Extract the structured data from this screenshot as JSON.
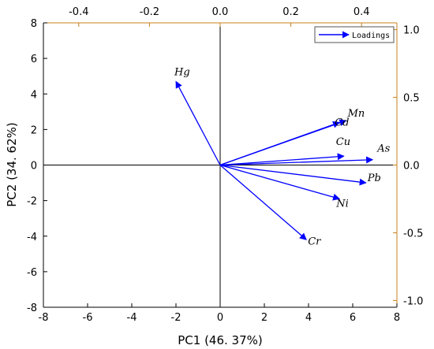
{
  "chart_data": {
    "type": "biplot",
    "xlabel": "PC1 (46. 37%)",
    "ylabel": "PC2 (34. 62%)",
    "xlim": [
      -8,
      8
    ],
    "ylim": [
      -8,
      8
    ],
    "x_ticks": [
      -8,
      -6,
      -4,
      -2,
      0,
      2,
      4,
      6,
      8
    ],
    "y_ticks": [
      -8,
      -6,
      -4,
      -2,
      0,
      2,
      4,
      6,
      8
    ],
    "top_axis": {
      "lim": [
        -0.5,
        0.5
      ],
      "ticks": [
        "-0.4",
        "-0.2",
        "0.0",
        "0.2",
        "0.4"
      ],
      "tick_values": [
        -0.4,
        -0.2,
        0.0,
        0.2,
        0.4
      ]
    },
    "right_axis": {
      "lim": [
        -1.05,
        1.05
      ],
      "ticks": [
        "-1.0",
        "-0.5",
        "0.0",
        "0.5",
        "1.0"
      ],
      "tick_values": [
        -1.0,
        -0.5,
        0.0,
        0.5,
        1.0
      ]
    },
    "legend": {
      "label": "Loadings",
      "placement": "top-right"
    },
    "series": [
      {
        "name": "Loadings",
        "color": "#0000ff",
        "vectors": [
          {
            "label": "Hg",
            "x": -2.0,
            "y": 4.7
          },
          {
            "label": "Mn",
            "x": 5.7,
            "y": 2.5
          },
          {
            "label": "Cd",
            "x": 5.4,
            "y": 2.4
          },
          {
            "label": "Cu",
            "x": 5.6,
            "y": 0.5
          },
          {
            "label": "As",
            "x": 6.9,
            "y": 0.3
          },
          {
            "label": "Pb",
            "x": 6.6,
            "y": -1.0
          },
          {
            "label": "Ni",
            "x": 5.4,
            "y": -1.9
          },
          {
            "label": "Cr",
            "x": 3.9,
            "y": -4.2
          }
        ]
      }
    ]
  },
  "colors": {
    "vector": "#0000ff",
    "right_axis": "#c8801a",
    "top_axis": "#c8801a",
    "frame": "#000000"
  }
}
